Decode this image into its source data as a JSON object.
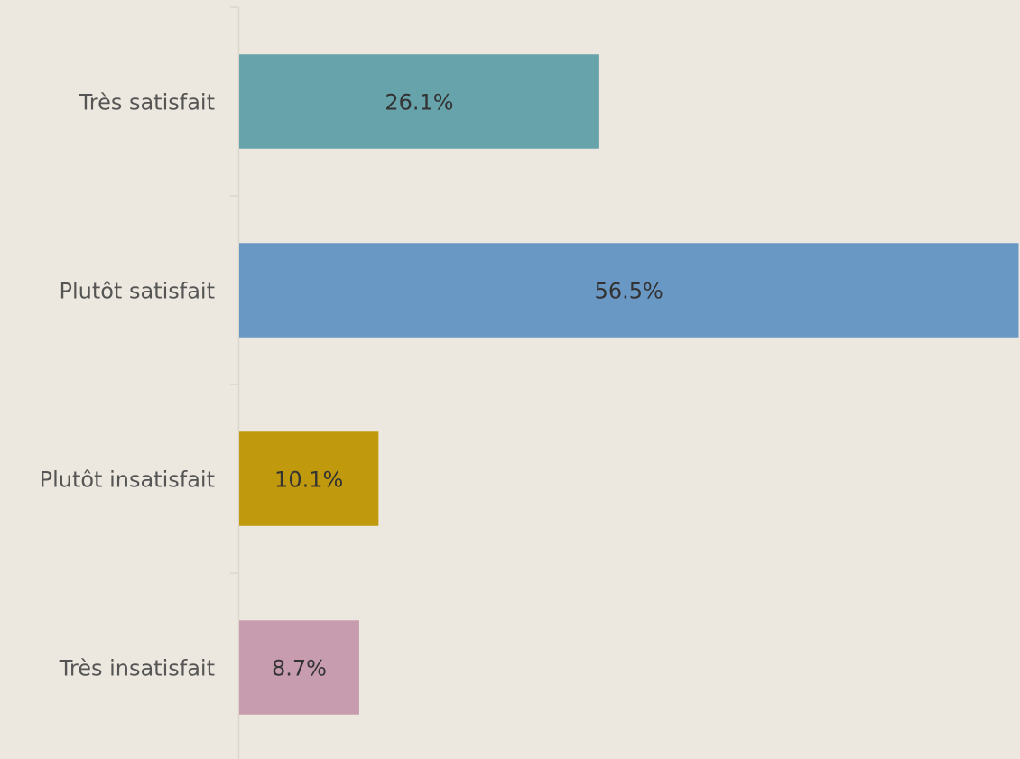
{
  "chart_data": {
    "type": "barh",
    "categories": [
      "Très satisfait",
      "Plutôt satisfait",
      "Plutôt insatisfait",
      "Très insatisfait"
    ],
    "values": [
      26.1,
      56.5,
      10.1,
      8.7
    ],
    "value_labels": [
      "26.1%",
      "56.5%",
      "10.1%",
      "8.7%"
    ],
    "colors": [
      "#67a3ab",
      "#6a98c4",
      "#c09a0c",
      "#c89caf"
    ],
    "xlim": [
      0,
      56.6
    ]
  }
}
